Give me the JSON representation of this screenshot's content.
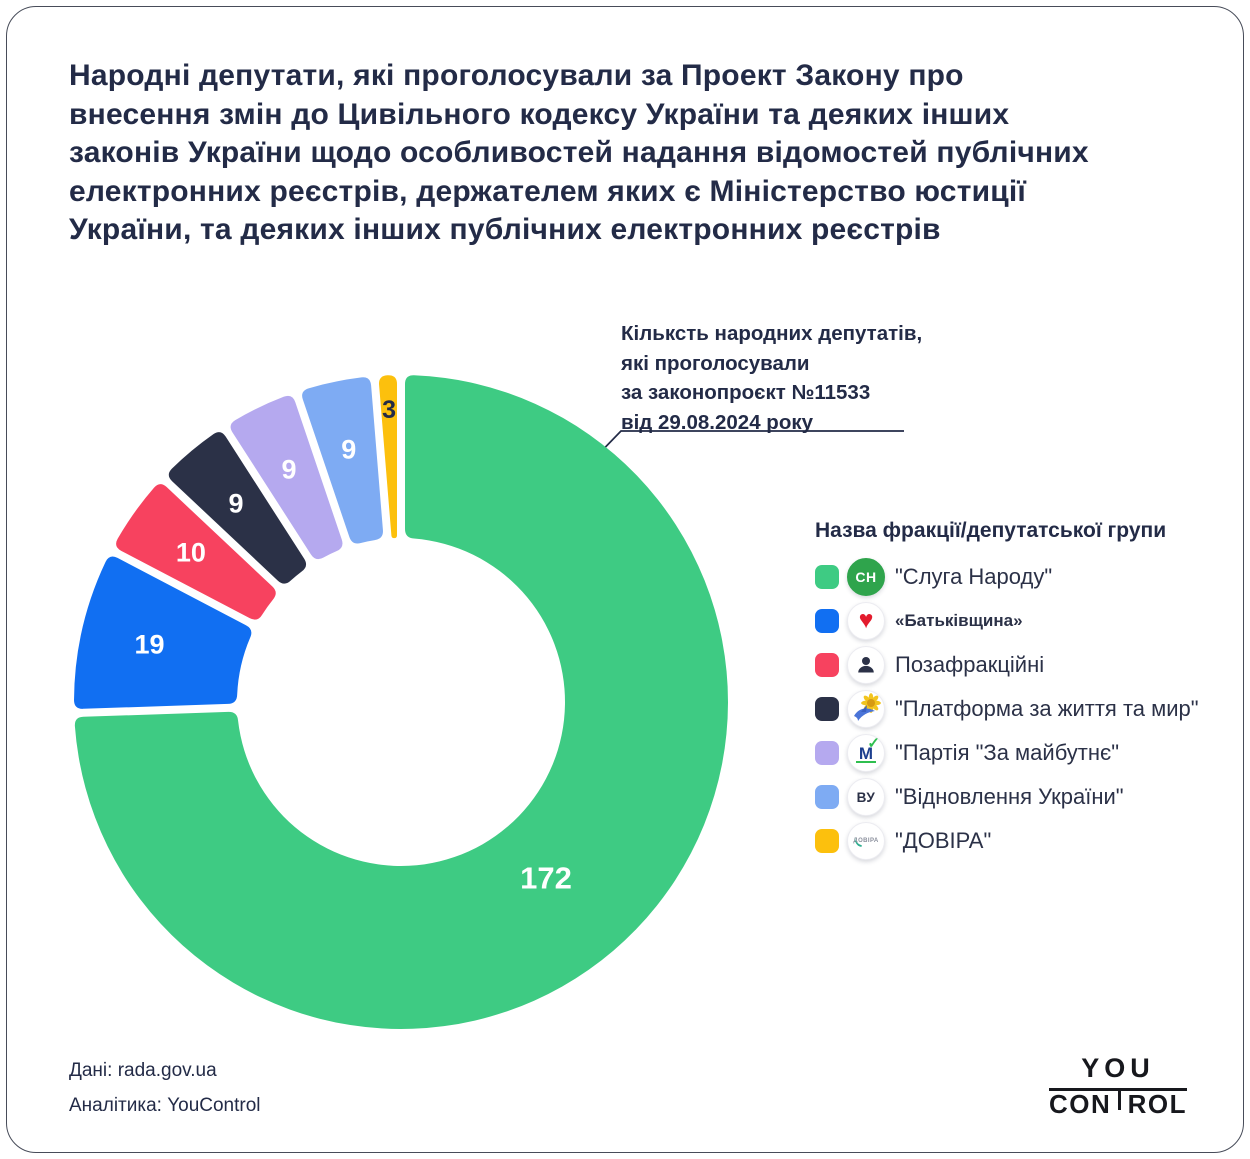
{
  "title": "Народні депутати, які проголосували за Проект Закону про\nвнесення змін до Цивільного кодексу України та деяких інших\nзаконів України щодо особливостей надання відомостей публічних\nелектронних реєстрів, держателем яких є Міністерство юстиції\nУкраїни, та деяких інших публічних електронних реєстрів",
  "annotation": {
    "text": "Кільксть народних депутатів,\nякі проголосували\nза законопроєкт №11533\nвід 29.08.2024 року"
  },
  "chart_data": {
    "type": "donut",
    "title": "Голоси за законопроєкт №11533 від 29.08.2024 за фракціями",
    "total": 231,
    "direction": "clockwise",
    "start_angle_deg": 0,
    "outer_radius_px": 327,
    "inner_radius_px": 164,
    "legend_position": "right",
    "categories": [
      "Слуга Народу",
      "Батьківщина",
      "Позафракційні",
      "Платформа за життя та мир",
      "Партія За майбутнє",
      "Відновлення України",
      "ДОВІРА"
    ],
    "series": [
      {
        "faction": "Слуга Народу",
        "value": 172,
        "color": "#3ecb83",
        "label": "172",
        "label_color": "#ffffff",
        "label_size": 31,
        "label_radius": 228,
        "label_angle": 140.5
      },
      {
        "faction": "Батьківщина",
        "value": 19,
        "color": "#116ff2",
        "label": "19",
        "label_color": "#ffffff",
        "label_size": 27,
        "label_radius": 258
      },
      {
        "faction": "Позафракційні",
        "value": 10,
        "color": "#f7425f",
        "label": "10",
        "label_color": "#ffffff",
        "label_size": 27,
        "label_radius": 258
      },
      {
        "faction": "Платформа за життя та мир",
        "value": 9,
        "color": "#2b3147",
        "label": "9",
        "label_color": "#ffffff",
        "label_size": 27,
        "label_radius": 258
      },
      {
        "faction": "Партія За майбутнє",
        "value": 9,
        "color": "#b5a9ef",
        "label": "9",
        "label_color": "#ffffff",
        "label_size": 27,
        "label_radius": 258
      },
      {
        "faction": "Відновлення України",
        "value": 9,
        "color": "#7eabf3",
        "label": "9",
        "label_color": "#ffffff",
        "label_size": 27,
        "label_radius": 258
      },
      {
        "faction": "ДОВІРА",
        "value": 3,
        "color": "#fcc00d",
        "label": "3",
        "label_color": "#232b47",
        "label_size": 25,
        "label_radius": 292
      }
    ]
  },
  "legend": {
    "header": "Назва фракції/депутатської групи",
    "items": [
      {
        "label": "\"Слуга Народу\"",
        "color": "#3ecb83",
        "icon": "sluha-narodu",
        "small": false
      },
      {
        "label": "«Батьківщина»",
        "color": "#116ff2",
        "icon": "batkivshchyna",
        "small": true
      },
      {
        "label": "Позафракційні",
        "color": "#f7425f",
        "icon": "person",
        "small": false
      },
      {
        "label": "\"Платформа за життя та мир\"",
        "color": "#2b3147",
        "icon": "sunflower-dove",
        "small": false
      },
      {
        "label": "\"Партія \"За майбутнє\"",
        "color": "#b5a9ef",
        "icon": "za-maibutne",
        "small": false
      },
      {
        "label": "\"Відновлення України\"",
        "color": "#7eabf3",
        "icon": "vu",
        "small": false
      },
      {
        "label": "\"ДОВІРА\"",
        "color": "#fcc00d",
        "icon": "dovira",
        "small": false
      }
    ]
  },
  "icon_texts": {
    "sluha_narodu": "СН",
    "heart": "♥",
    "maibutne_letter": "М",
    "maibutne_check": "✓",
    "vu": "ВУ",
    "dovira": "ДОВІРА"
  },
  "footer": {
    "source": "Дані: rada.gov.ua",
    "analytics": "Аналітика: YouControl"
  },
  "logo": {
    "line1": "YOU",
    "line2_left": "CON",
    "line2_right": "ROL"
  }
}
